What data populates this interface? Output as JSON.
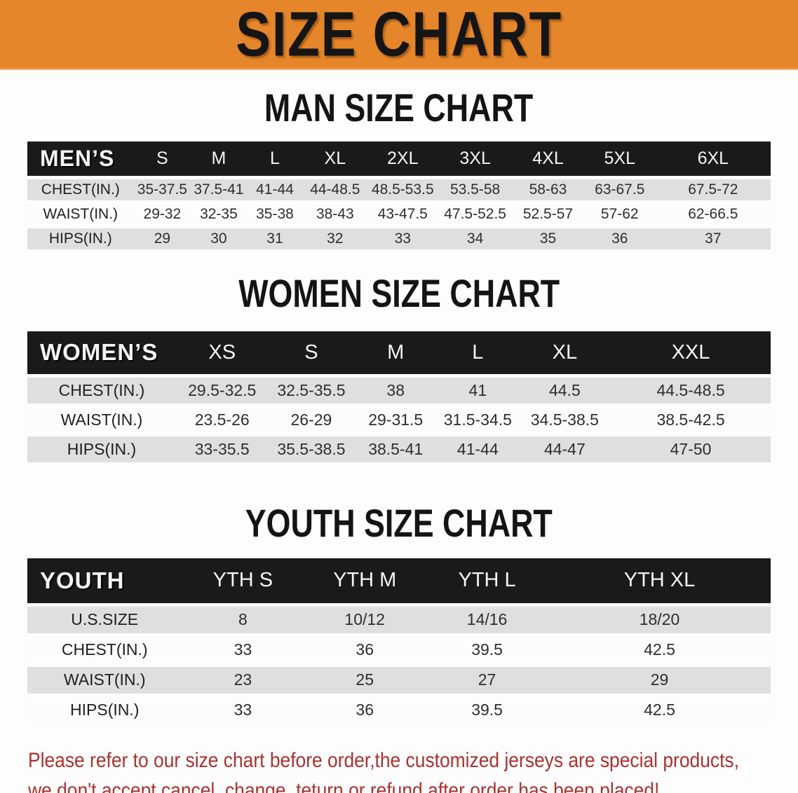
{
  "banner": {
    "title": "SIZE CHART",
    "bg_color": "#e6862b",
    "text_color": "#151515"
  },
  "sections": [
    {
      "id": "men",
      "title": "MAN SIZE CHART",
      "table": {
        "header_label": "MEN’S",
        "columns": [
          "S",
          "M",
          "L",
          "XL",
          "2XL",
          "3XL",
          "4XL",
          "5XL",
          "6XL"
        ],
        "rows": [
          {
            "label": "CHEST(IN.)",
            "values": [
              "35-37.5",
              "37.5-41",
              "41-44",
              "44-48.5",
              "48.5-53.5",
              "53.5-58",
              "58-63",
              "63-67.5",
              "67.5-72"
            ]
          },
          {
            "label": "WAIST(IN.)",
            "values": [
              "29-32",
              "32-35",
              "35-38",
              "38-43",
              "43-47.5",
              "47.5-52.5",
              "52.5-57",
              "57-62",
              "62-66.5"
            ]
          },
          {
            "label": "HIPS(IN.)",
            "values": [
              "29",
              "30",
              "31",
              "32",
              "33",
              "34",
              "35",
              "36",
              "37"
            ]
          }
        ]
      }
    },
    {
      "id": "women",
      "title": "WOMEN SIZE CHART",
      "table": {
        "header_label": "WOMEN’S",
        "columns": [
          "XS",
          "S",
          "M",
          "L",
          "XL",
          "XXL"
        ],
        "rows": [
          {
            "label": "CHEST(IN.)",
            "values": [
              "29.5-32.5",
              "32.5-35.5",
              "38",
              "41",
              "44.5",
              "44.5-48.5"
            ]
          },
          {
            "label": "WAIST(IN.)",
            "values": [
              "23.5-26",
              "26-29",
              "29-31.5",
              "31.5-34.5",
              "34.5-38.5",
              "38.5-42.5"
            ]
          },
          {
            "label": "HIPS(IN.)",
            "values": [
              "33-35.5",
              "35.5-38.5",
              "38.5-41",
              "41-44",
              "44-47",
              "47-50"
            ]
          }
        ]
      }
    },
    {
      "id": "youth",
      "title": "YOUTH SIZE CHART",
      "table": {
        "header_label": "YOUTH",
        "columns": [
          "YTH S",
          "YTH M",
          "YTH L",
          "YTH XL"
        ],
        "rows": [
          {
            "label": "U.S.SIZE",
            "values": [
              "8",
              "10/12",
              "14/16",
              "18/20"
            ]
          },
          {
            "label": "CHEST(IN.)",
            "values": [
              "33",
              "36",
              "39.5",
              "42.5"
            ]
          },
          {
            "label": "WAIST(IN.)",
            "values": [
              "23",
              "25",
              "27",
              "29"
            ]
          },
          {
            "label": "HIPS(IN.)",
            "values": [
              "33",
              "36",
              "39.5",
              "42.5"
            ]
          }
        ]
      }
    }
  ],
  "note": {
    "line1": "Please refer to our size chart before order,the customized jerseys are special products,",
    "line2": "we don't accept cancel, change, teturn or refund after order has been placed!",
    "color": "#a93230"
  },
  "colors": {
    "banner_orange": "#e6862b",
    "table_header_black": "#1a1a1a",
    "row_gray": "#dfdfdf",
    "row_white": "#fcfcfc",
    "note_red": "#a93230"
  }
}
